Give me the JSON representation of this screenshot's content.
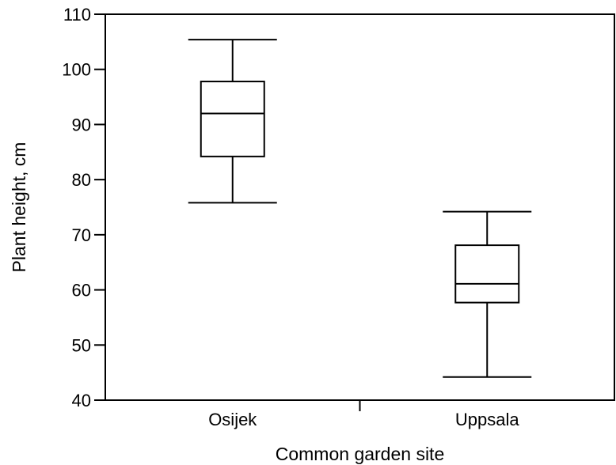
{
  "chart_data": {
    "type": "box",
    "title": "",
    "xlabel": "Common garden site",
    "ylabel": "Plant height, cm",
    "ylim": [
      40,
      110
    ],
    "yticks": [
      40,
      50,
      60,
      70,
      80,
      90,
      100,
      110
    ],
    "ytick_labels": [
      "40",
      "50",
      "60",
      "70",
      "80",
      "90",
      "100",
      "110"
    ],
    "categories": [
      "Osijek",
      "Uppsala"
    ],
    "boxes": [
      {
        "category": "Osijek",
        "min": 75.8,
        "q1": 84.2,
        "median": 92.0,
        "q3": 97.8,
        "max": 105.4
      },
      {
        "category": "Uppsala",
        "min": 44.2,
        "q1": 57.7,
        "median": 61.1,
        "q3": 68.1,
        "max": 74.2
      }
    ],
    "grid": false,
    "legend": "none"
  }
}
